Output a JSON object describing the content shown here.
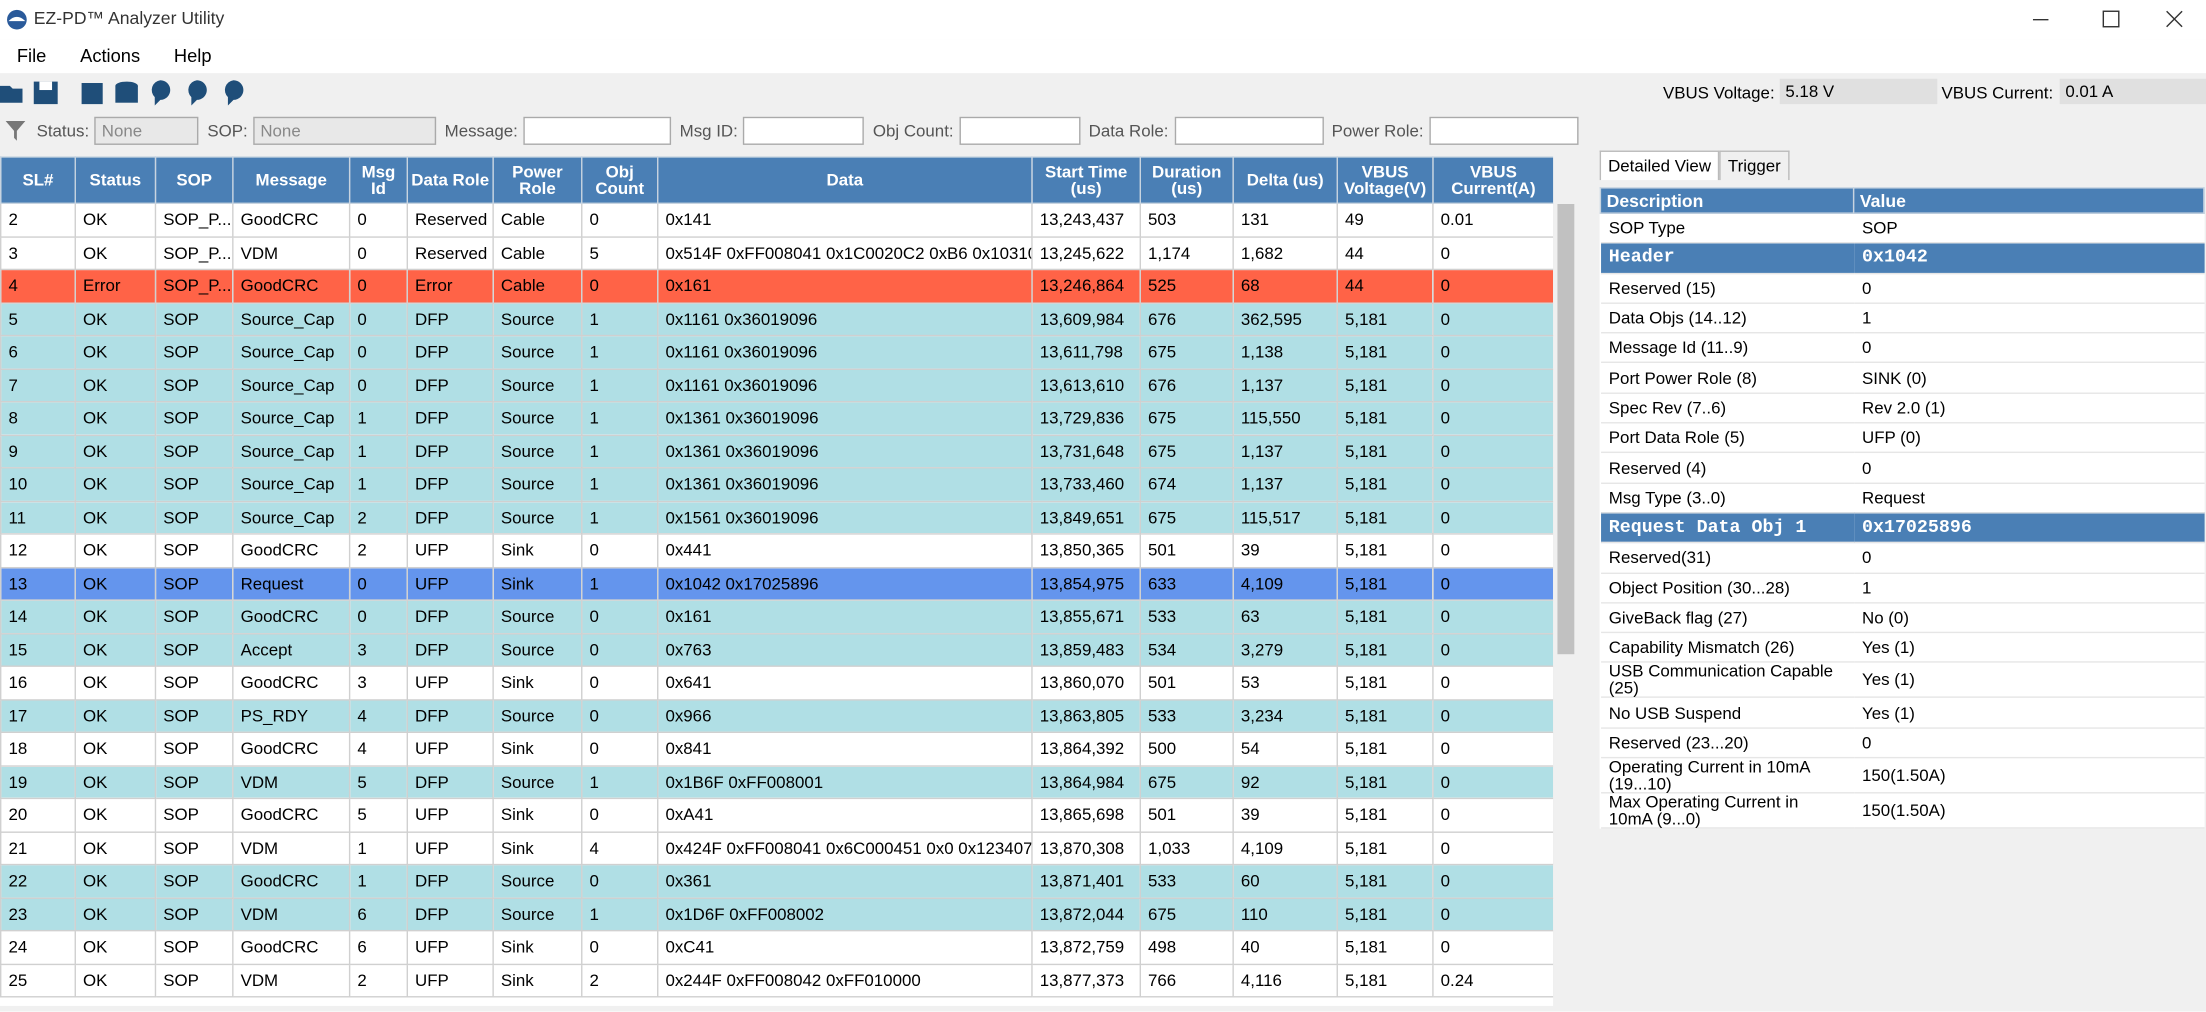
{
  "window": {
    "title": "EZ-PD™ Analyzer Utility"
  },
  "menu": [
    "File",
    "Actions",
    "Help"
  ],
  "status": {
    "voltage_label": "VBUS Voltage:",
    "voltage": "5.18 V",
    "current_label": "VBUS Current:",
    "current": "0.01 A"
  },
  "filters": [
    {
      "label": "Status:",
      "value": "None"
    },
    {
      "label": "SOP:",
      "value": "None"
    },
    {
      "label": "Message:"
    },
    {
      "label": "Msg ID:"
    },
    {
      "label": "Obj Count:"
    },
    {
      "label": "Data Role:"
    },
    {
      "label": "Power Role:"
    }
  ],
  "table": {
    "columns": [
      "SL#",
      "Status",
      "SOP",
      "Message",
      "Msg Id",
      "Data Role",
      "Power Role",
      "Obj Count",
      "Data",
      "Start Time (us)",
      "Duration (us)",
      "Delta (us)",
      "VBUS Voltage(V)",
      "VBUS Current(A)"
    ],
    "rows": [
      [
        "2",
        "OK",
        "SOP_P...",
        "GoodCRC",
        "0",
        "Reserved",
        "Cable",
        "0",
        "0x141",
        "13,243,437",
        "503",
        "131",
        "49",
        "0.01"
      ],
      [
        "3",
        "OK",
        "SOP_P...",
        "VDM",
        "0",
        "Reserved",
        "Cable",
        "5",
        "0x514F 0xFF008041 0x1C0020C2 0xB6 0x10310...",
        "13,245,622",
        "1,174",
        "1,682",
        "44",
        "0"
      ],
      [
        "4",
        "Error",
        "SOP_P...",
        "GoodCRC",
        "0",
        "Error",
        "Cable",
        "0",
        "0x161",
        "13,246,864",
        "525",
        "68",
        "44",
        "0"
      ],
      [
        "5",
        "OK",
        "SOP",
        "Source_Cap",
        "0",
        "DFP",
        "Source",
        "1",
        "0x1161 0x36019096",
        "13,609,984",
        "676",
        "362,595",
        "5,181",
        "0"
      ],
      [
        "6",
        "OK",
        "SOP",
        "Source_Cap",
        "0",
        "DFP",
        "Source",
        "1",
        "0x1161 0x36019096",
        "13,611,798",
        "675",
        "1,138",
        "5,181",
        "0"
      ],
      [
        "7",
        "OK",
        "SOP",
        "Source_Cap",
        "0",
        "DFP",
        "Source",
        "1",
        "0x1161 0x36019096",
        "13,613,610",
        "676",
        "1,137",
        "5,181",
        "0"
      ],
      [
        "8",
        "OK",
        "SOP",
        "Source_Cap",
        "1",
        "DFP",
        "Source",
        "1",
        "0x1361 0x36019096",
        "13,729,836",
        "675",
        "115,550",
        "5,181",
        "0"
      ],
      [
        "9",
        "OK",
        "SOP",
        "Source_Cap",
        "1",
        "DFP",
        "Source",
        "1",
        "0x1361 0x36019096",
        "13,731,648",
        "675",
        "1,137",
        "5,181",
        "0"
      ],
      [
        "10",
        "OK",
        "SOP",
        "Source_Cap",
        "1",
        "DFP",
        "Source",
        "1",
        "0x1361 0x36019096",
        "13,733,460",
        "674",
        "1,137",
        "5,181",
        "0"
      ],
      [
        "11",
        "OK",
        "SOP",
        "Source_Cap",
        "2",
        "DFP",
        "Source",
        "1",
        "0x1561 0x36019096",
        "13,849,651",
        "675",
        "115,517",
        "5,181",
        "0"
      ],
      [
        "12",
        "OK",
        "SOP",
        "GoodCRC",
        "2",
        "UFP",
        "Sink",
        "0",
        "0x441",
        "13,850,365",
        "501",
        "39",
        "5,181",
        "0"
      ],
      [
        "13",
        "OK",
        "SOP",
        "Request",
        "0",
        "UFP",
        "Sink",
        "1",
        "0x1042 0x17025896",
        "13,854,975",
        "633",
        "4,109",
        "5,181",
        "0"
      ],
      [
        "14",
        "OK",
        "SOP",
        "GoodCRC",
        "0",
        "DFP",
        "Source",
        "0",
        "0x161",
        "13,855,671",
        "533",
        "63",
        "5,181",
        "0"
      ],
      [
        "15",
        "OK",
        "SOP",
        "Accept",
        "3",
        "DFP",
        "Source",
        "0",
        "0x763",
        "13,859,483",
        "534",
        "3,279",
        "5,181",
        "0"
      ],
      [
        "16",
        "OK",
        "SOP",
        "GoodCRC",
        "3",
        "UFP",
        "Sink",
        "0",
        "0x641",
        "13,860,070",
        "501",
        "53",
        "5,181",
        "0"
      ],
      [
        "17",
        "OK",
        "SOP",
        "PS_RDY",
        "4",
        "DFP",
        "Source",
        "0",
        "0x966",
        "13,863,805",
        "533",
        "3,234",
        "5,181",
        "0"
      ],
      [
        "18",
        "OK",
        "SOP",
        "GoodCRC",
        "4",
        "UFP",
        "Sink",
        "0",
        "0x841",
        "13,864,392",
        "500",
        "54",
        "5,181",
        "0"
      ],
      [
        "19",
        "OK",
        "SOP",
        "VDM",
        "5",
        "DFP",
        "Source",
        "1",
        "0x1B6F 0xFF008001",
        "13,864,984",
        "675",
        "92",
        "5,181",
        "0"
      ],
      [
        "20",
        "OK",
        "SOP",
        "GoodCRC",
        "5",
        "UFP",
        "Sink",
        "0",
        "0xA41",
        "13,865,698",
        "501",
        "39",
        "5,181",
        "0"
      ],
      [
        "21",
        "OK",
        "SOP",
        "VDM",
        "1",
        "UFP",
        "Sink",
        "4",
        "0x424F 0xFF008041 0x6C000451 0x0 0x123407...",
        "13,870,308",
        "1,033",
        "4,109",
        "5,181",
        "0"
      ],
      [
        "22",
        "OK",
        "SOP",
        "GoodCRC",
        "1",
        "DFP",
        "Source",
        "0",
        "0x361",
        "13,871,401",
        "533",
        "60",
        "5,181",
        "0"
      ],
      [
        "23",
        "OK",
        "SOP",
        "VDM",
        "6",
        "DFP",
        "Source",
        "1",
        "0x1D6F 0xFF008002",
        "13,872,044",
        "675",
        "110",
        "5,181",
        "0"
      ],
      [
        "24",
        "OK",
        "SOP",
        "GoodCRC",
        "6",
        "UFP",
        "Sink",
        "0",
        "0xC41",
        "13,872,759",
        "498",
        "40",
        "5,181",
        "0"
      ],
      [
        "25",
        "OK",
        "SOP",
        "VDM",
        "2",
        "UFP",
        "Sink",
        "2",
        "0x244F 0xFF008042 0xFF010000",
        "13,877,373",
        "766",
        "4,116",
        "5,181",
        "0.24"
      ]
    ],
    "row_colors": [
      "#ffffff",
      "#ffffff",
      "#ff6347",
      "#b0dfe5",
      "#b0dfe5",
      "#b0dfe5",
      "#b0dfe5",
      "#b0dfe5",
      "#b0dfe5",
      "#b0dfe5",
      "#ffffff",
      "#6495ed",
      "#b0dfe5",
      "#b0dfe5",
      "#ffffff",
      "#b0dfe5",
      "#ffffff",
      "#b0dfe5",
      "#ffffff",
      "#ffffff",
      "#b0dfe5",
      "#b0dfe5",
      "#ffffff",
      "#ffffff"
    ]
  },
  "detail": {
    "tabs": [
      "Detailed View",
      "Trigger"
    ],
    "columns": [
      "Description",
      "Value"
    ],
    "rows": [
      {
        "description": "SOP Type",
        "value": "SOP"
      },
      {
        "description": "Header",
        "value": "0x1042",
        "section": true
      },
      {
        "description": "Reserved (15)",
        "value": "0"
      },
      {
        "description": "Data Objs (14..12)",
        "value": "1"
      },
      {
        "description": "Message Id (11..9)",
        "value": "0"
      },
      {
        "description": "Port Power Role (8)",
        "value": "SINK (0)"
      },
      {
        "description": "Spec Rev (7..6)",
        "value": "Rev 2.0 (1)"
      },
      {
        "description": "Port Data Role (5)",
        "value": "UFP (0)"
      },
      {
        "description": "Reserved (4)",
        "value": "0"
      },
      {
        "description": "Msg Type (3..0)",
        "value": "Request"
      },
      {
        "description": "Request Data Obj 1",
        "value": "0x17025896",
        "section": true
      },
      {
        "description": "Reserved(31)",
        "value": "0"
      },
      {
        "description": "Object Position (30...28)",
        "value": "1"
      },
      {
        "description": "GiveBack flag (27)",
        "value": "No (0)"
      },
      {
        "description": "Capability Mismatch (26)",
        "value": "Yes (1)"
      },
      {
        "description": "USB Communication Capable (25)",
        "value": "Yes (1)"
      },
      {
        "description": "No USB Suspend",
        "value": "Yes (1)"
      },
      {
        "description": "Reserved (23...20)",
        "value": "0"
      },
      {
        "description": "Operating Current in 10mA (19...10)",
        "value": "150(1.50A)"
      },
      {
        "description": "Max Operating Current in 10mA (9...0)",
        "value": "150(1.50A)"
      }
    ]
  }
}
